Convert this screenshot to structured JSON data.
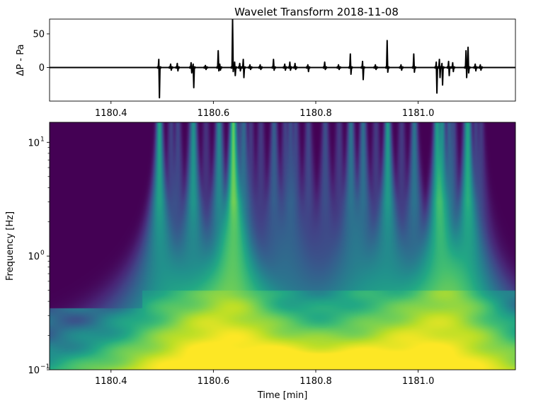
{
  "chart_data": [
    {
      "type": "line",
      "title": "Wavelet Transform 2018-11-08",
      "ylabel": "ΔP - Pa",
      "xlim": [
        1180.28,
        1181.19
      ],
      "ylim": [
        -50,
        72
      ],
      "x_ticks": [
        1180.4,
        1180.6,
        1180.8,
        1181.0
      ],
      "x_tick_labels": [
        "1180.4",
        "1180.6",
        "1180.8",
        "1181.0"
      ],
      "y_ticks": [
        0,
        50
      ],
      "y_tick_labels": [
        "0",
        "50"
      ],
      "line_color": "#000000",
      "grid": false,
      "events": [
        {
          "x": 1180.494,
          "up": 12,
          "down": -45
        },
        {
          "x": 1180.517,
          "up": 5,
          "down": -4
        },
        {
          "x": 1180.53,
          "up": 6,
          "down": -5
        },
        {
          "x": 1180.557,
          "up": 7,
          "down": -8
        },
        {
          "x": 1180.561,
          "up": 5,
          "down": -30
        },
        {
          "x": 1180.585,
          "up": 3,
          "down": -3
        },
        {
          "x": 1180.61,
          "up": 25,
          "down": -5
        },
        {
          "x": 1180.613,
          "up": 5,
          "down": -4
        },
        {
          "x": 1180.638,
          "up": 72,
          "down": -6
        },
        {
          "x": 1180.642,
          "up": 8,
          "down": -12
        },
        {
          "x": 1180.652,
          "up": 6,
          "down": -5
        },
        {
          "x": 1180.659,
          "up": 12,
          "down": -15
        },
        {
          "x": 1180.672,
          "up": 4,
          "down": -3
        },
        {
          "x": 1180.692,
          "up": 4,
          "down": -3
        },
        {
          "x": 1180.718,
          "up": 12,
          "down": -4
        },
        {
          "x": 1180.74,
          "up": 5,
          "down": -4
        },
        {
          "x": 1180.75,
          "up": 8,
          "down": -4
        },
        {
          "x": 1180.76,
          "up": 6,
          "down": -3
        },
        {
          "x": 1180.785,
          "up": 4,
          "down": -6
        },
        {
          "x": 1180.818,
          "up": 8,
          "down": -3
        },
        {
          "x": 1180.845,
          "up": 4,
          "down": -3
        },
        {
          "x": 1180.868,
          "up": 20,
          "down": -10
        },
        {
          "x": 1180.892,
          "up": 9,
          "down": -18
        },
        {
          "x": 1180.917,
          "up": 4,
          "down": -3
        },
        {
          "x": 1180.94,
          "up": 40,
          "down": -7
        },
        {
          "x": 1180.967,
          "up": 4,
          "down": -4
        },
        {
          "x": 1180.992,
          "up": 20,
          "down": -7
        },
        {
          "x": 1181.036,
          "up": 8,
          "down": -38
        },
        {
          "x": 1181.042,
          "up": 12,
          "down": -15
        },
        {
          "x": 1181.047,
          "up": 6,
          "down": -26
        },
        {
          "x": 1181.06,
          "up": 9,
          "down": -12
        },
        {
          "x": 1181.068,
          "up": 7,
          "down": -6
        },
        {
          "x": 1181.094,
          "up": 25,
          "down": -15
        },
        {
          "x": 1181.098,
          "up": 30,
          "down": -8
        },
        {
          "x": 1181.112,
          "up": 5,
          "down": -5
        },
        {
          "x": 1181.122,
          "up": 4,
          "down": -4
        }
      ]
    },
    {
      "type": "heatmap",
      "xlabel": "Time  [min]",
      "ylabel": "Frequency [Hz]",
      "xlim": [
        1180.28,
        1181.19
      ],
      "ylim": [
        0.1,
        15
      ],
      "y_scale": "log",
      "colormap": "viridis",
      "x_ticks": [
        1180.4,
        1180.6,
        1180.8,
        1181.0
      ],
      "x_tick_labels": [
        "1180.4",
        "1180.6",
        "1180.8",
        "1181.0"
      ],
      "y_ticks": [
        0.1,
        1,
        10
      ],
      "y_tick_labels": [
        "10",
        "10",
        "10"
      ],
      "y_tick_exponents": [
        "−1",
        "0",
        "1"
      ],
      "colors": [
        "#440154",
        "#482475",
        "#414487",
        "#355f8d",
        "#2a788e",
        "#21918c",
        "#22a884",
        "#44bf70",
        "#7ad151",
        "#bddf26",
        "#fde725"
      ]
    }
  ]
}
